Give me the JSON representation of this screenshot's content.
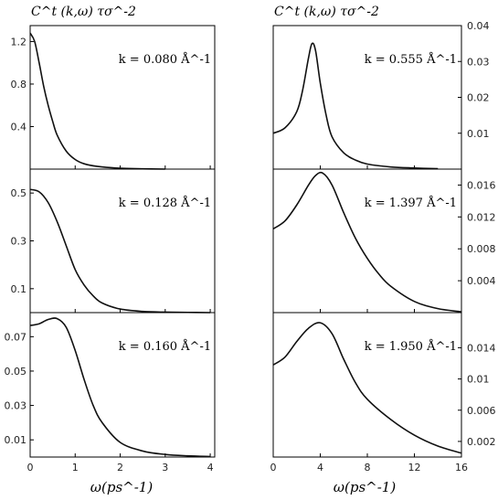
{
  "chart_data": {
    "type": "line",
    "layout": "2 columns x 3 rows, panels share x-axis within each column",
    "columns": [
      {
        "ylabel": "C^t (k,ω) τσ^-2",
        "xlabel": "ω(ps^-1)",
        "xlim": [
          0,
          4.1
        ],
        "xticks": [
          "0",
          "1",
          "2",
          "3",
          "4"
        ],
        "panels": [
          {
            "k_label": "k = 0.080 Å^-1",
            "ylim": [
              0,
              1.35
            ],
            "yticks": [
              "0.4",
              "0.8",
              "1.2"
            ],
            "x": [
              0,
              0.1,
              0.2,
              0.3,
              0.4,
              0.5,
              0.6,
              0.8,
              1.0,
              1.2,
              1.5,
              2.0,
              2.5,
              3.0
            ],
            "y": [
              1.28,
              1.2,
              1.0,
              0.78,
              0.6,
              0.45,
              0.32,
              0.17,
              0.09,
              0.05,
              0.025,
              0.008,
              0.003,
              0.0
            ]
          },
          {
            "k_label": "k = 0.128 Å^-1",
            "ylim": [
              0,
              0.6
            ],
            "yticks": [
              "0.1",
              "0.3",
              "0.5"
            ],
            "x": [
              0,
              0.2,
              0.4,
              0.6,
              0.8,
              1.0,
              1.2,
              1.4,
              1.6,
              2.0,
              2.5,
              3.0,
              3.5,
              4.0
            ],
            "y": [
              0.515,
              0.505,
              0.46,
              0.38,
              0.28,
              0.18,
              0.115,
              0.07,
              0.04,
              0.015,
              0.005,
              0.002,
              0.001,
              0.0
            ]
          },
          {
            "k_label": "k = 0.160 Å^-1",
            "ylim": [
              0,
              0.084
            ],
            "yticks": [
              "0.01",
              "0.03",
              "0.05",
              "0.07"
            ],
            "x": [
              0,
              0.2,
              0.4,
              0.6,
              0.8,
              1.0,
              1.2,
              1.4,
              1.6,
              2.0,
              2.5,
              3.0,
              3.5,
              4.0
            ],
            "y": [
              0.0765,
              0.0775,
              0.08,
              0.0805,
              0.0755,
              0.062,
              0.045,
              0.03,
              0.02,
              0.0085,
              0.0035,
              0.0015,
              0.0007,
              0.0003
            ]
          }
        ]
      },
      {
        "ylabel": "C^t (k,ω) τσ^-2",
        "xlabel": "ω(ps^-1)",
        "xlim": [
          0,
          16
        ],
        "xticks": [
          "0",
          "4",
          "8",
          "12",
          "16"
        ],
        "panels": [
          {
            "k_label": "k = 0.555 Å^-1",
            "ylim": [
              0,
              0.04
            ],
            "yticks": [
              "0.01",
              "0.02",
              "0.03",
              "0.04"
            ],
            "x": [
              0,
              1,
              2,
              2.5,
              3.0,
              3.3,
              3.6,
              4.0,
              4.5,
              5,
              6,
              7,
              8,
              10,
              12,
              14
            ],
            "y": [
              0.01,
              0.0115,
              0.016,
              0.022,
              0.031,
              0.035,
              0.033,
              0.024,
              0.015,
              0.009,
              0.0045,
              0.0025,
              0.0014,
              0.0006,
              0.0003,
              0.0001
            ]
          },
          {
            "k_label": "k = 1.397 Å^-1",
            "ylim": [
              0,
              0.018
            ],
            "yticks": [
              "0.004",
              "0.008",
              "0.012",
              "0.016"
            ],
            "x": [
              0,
              1,
              2,
              3,
              3.6,
              4.2,
              5,
              6,
              7,
              8,
              9,
              10,
              12,
              14,
              16
            ],
            "y": [
              0.0105,
              0.0115,
              0.0135,
              0.016,
              0.0172,
              0.0175,
              0.016,
              0.0125,
              0.0093,
              0.0068,
              0.0048,
              0.0033,
              0.0014,
              0.0005,
              0.0001
            ]
          },
          {
            "k_label": "k = 1.950 Å^-1",
            "ylim": [
              0,
              0.0185
            ],
            "yticks": [
              "0.002",
              "0.006",
              "0.01",
              "0.014"
            ],
            "x": [
              0,
              1,
              2,
              3,
              4,
              5,
              6,
              7,
              8,
              10,
              12,
              14,
              16
            ],
            "y": [
              0.0118,
              0.0128,
              0.0148,
              0.0165,
              0.0172,
              0.0158,
              0.0125,
              0.0095,
              0.0074,
              0.0048,
              0.0028,
              0.0014,
              0.0005
            ]
          }
        ]
      }
    ]
  }
}
